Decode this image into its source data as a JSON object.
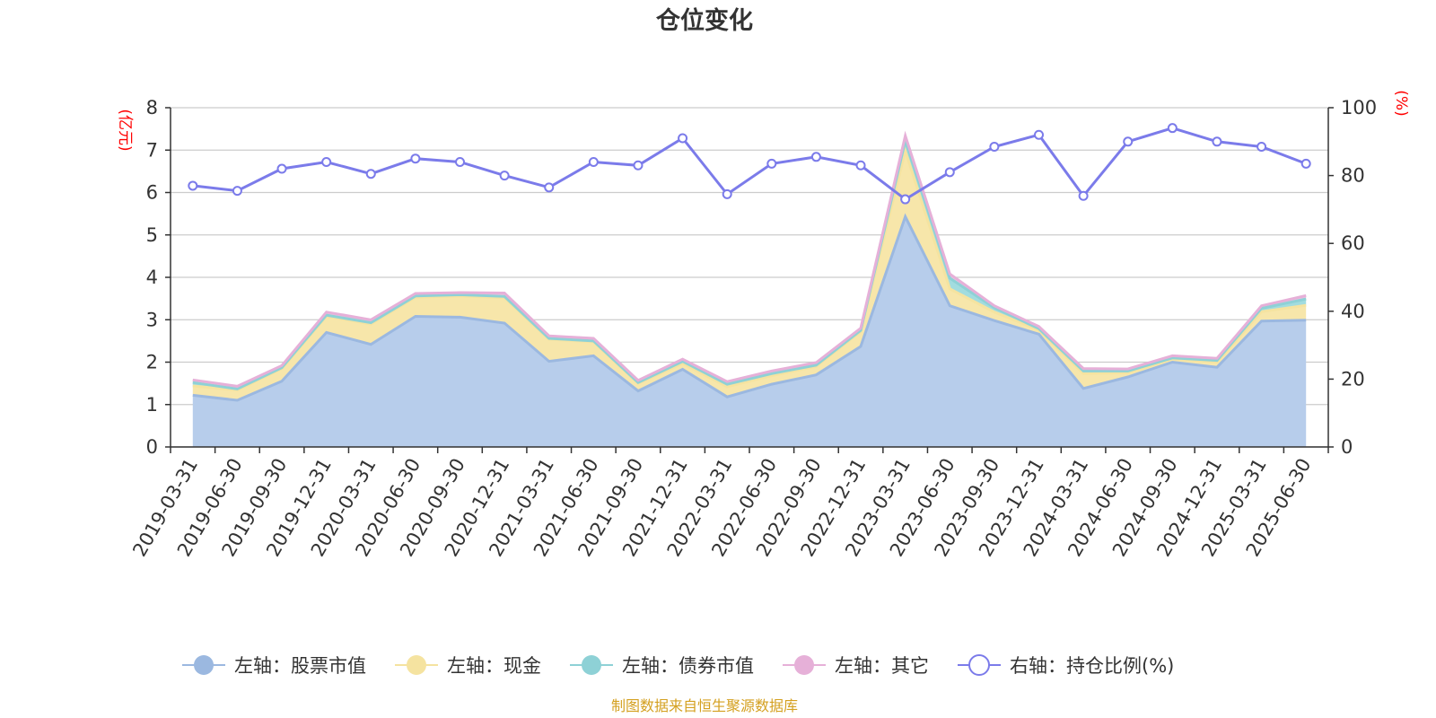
{
  "chart_data": {
    "type": "area",
    "title": "仓位变化",
    "left_unit": "(亿元)",
    "right_unit": "(%)",
    "left_ylim": [
      0,
      8
    ],
    "left_ticks": [
      "0",
      "1",
      "2",
      "3",
      "4",
      "5",
      "6",
      "7",
      "8"
    ],
    "right_ylim": [
      0,
      100
    ],
    "right_ticks": [
      "0",
      "20",
      "40",
      "60",
      "80",
      "100"
    ],
    "grid": true,
    "legend_position": "bottom",
    "categories": [
      "2019-03-31",
      "2019-06-30",
      "2019-09-30",
      "2019-12-31",
      "2020-03-31",
      "2020-06-30",
      "2020-09-30",
      "2020-12-31",
      "2021-03-31",
      "2021-06-30",
      "2021-09-30",
      "2021-12-31",
      "2022-03-31",
      "2022-06-30",
      "2022-09-30",
      "2022-12-31",
      "2023-03-31",
      "2023-06-30",
      "2023-09-30",
      "2023-12-31",
      "2024-03-31",
      "2024-06-30",
      "2024-09-30",
      "2024-12-31",
      "2025-03-31",
      "2025-06-30"
    ],
    "series": [
      {
        "name": "左轴：股票市值",
        "axis": "left",
        "stacked": true,
        "color": "#9bb8e0",
        "fill": "#b7cdeb",
        "values": [
          1.22,
          1.1,
          1.55,
          2.7,
          2.42,
          3.08,
          3.06,
          2.92,
          2.02,
          2.15,
          1.32,
          1.83,
          1.18,
          1.48,
          1.7,
          2.37,
          5.43,
          3.33,
          2.98,
          2.66,
          1.38,
          1.65,
          2.0,
          1.88,
          2.97,
          2.99
        ]
      },
      {
        "name": "左轴：现金",
        "axis": "left",
        "stacked": true,
        "color": "#f5e3a0",
        "fill": "#f7e6aa",
        "values": [
          0.22,
          0.24,
          0.3,
          0.38,
          0.48,
          0.45,
          0.5,
          0.6,
          0.52,
          0.33,
          0.18,
          0.14,
          0.24,
          0.2,
          0.2,
          0.35,
          1.55,
          0.4,
          0.2,
          0.1,
          0.35,
          0.1,
          0.08,
          0.12,
          0.22,
          0.35
        ]
      },
      {
        "name": "左轴：债券市值",
        "axis": "left",
        "stacked": true,
        "color": "#8ed1d6",
        "fill": "#a2dcdf",
        "values": [
          0.08,
          0.03,
          0.02,
          0.03,
          0.03,
          0.03,
          0.03,
          0.03,
          0.02,
          0.02,
          0.02,
          0.05,
          0.06,
          0.05,
          0.03,
          0.03,
          0.24,
          0.25,
          0.1,
          0.03,
          0.06,
          0.04,
          0.02,
          0.04,
          0.08,
          0.15
        ]
      },
      {
        "name": "左轴：其它",
        "axis": "left",
        "stacked": true,
        "color": "#e6b0d8",
        "fill": "#edc0e0",
        "values": [
          0.06,
          0.06,
          0.05,
          0.07,
          0.07,
          0.06,
          0.05,
          0.08,
          0.06,
          0.06,
          0.05,
          0.05,
          0.06,
          0.06,
          0.06,
          0.05,
          0.12,
          0.1,
          0.05,
          0.05,
          0.06,
          0.05,
          0.05,
          0.05,
          0.06,
          0.08
        ]
      },
      {
        "name": "右轴：持仓比例(%)",
        "axis": "right",
        "stacked": false,
        "color": "#7b7bea",
        "values": [
          77,
          75.5,
          82,
          84,
          80.5,
          85,
          84,
          80,
          76.5,
          84,
          83,
          91,
          74.5,
          83.5,
          85.5,
          83,
          73,
          81,
          88.5,
          92,
          74,
          90,
          94,
          90,
          88.5,
          83.5
        ]
      }
    ]
  },
  "footer": {
    "source": "制图数据来自恒生聚源数据库"
  }
}
